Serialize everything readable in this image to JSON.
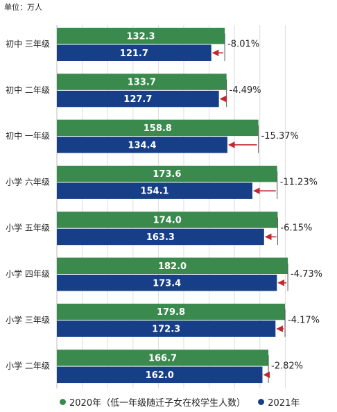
{
  "unit_label": "单位：万人",
  "colors": {
    "green": "#3a8a4d",
    "blue": "#173f87",
    "arrow": "#c0282f"
  },
  "chart_data": {
    "type": "bar",
    "orientation": "horizontal",
    "categories": [
      "初中 三年级",
      "初中 二年级",
      "初中 一年级",
      "小学 六年级",
      "小学 五年级",
      "小学 四年级",
      "小学 三年级",
      "小学 二年级"
    ],
    "series": [
      {
        "name": "2020年（低一年级随迁子女在校学生人数）",
        "values": [
          132.3,
          133.7,
          158.8,
          173.6,
          174.0,
          182.0,
          179.8,
          166.7
        ]
      },
      {
        "name": "2021年",
        "values": [
          121.7,
          127.7,
          134.4,
          154.1,
          163.3,
          173.4,
          172.3,
          162.0
        ]
      }
    ],
    "change_labels": [
      "-8.01%",
      "-4.49%",
      "-15.37%",
      "-11.23%",
      "-6.15%",
      "-4.73%",
      "-4.17%",
      "-2.82%"
    ],
    "xlim": [
      0,
      200
    ],
    "grid": true,
    "legend": "bottom"
  }
}
